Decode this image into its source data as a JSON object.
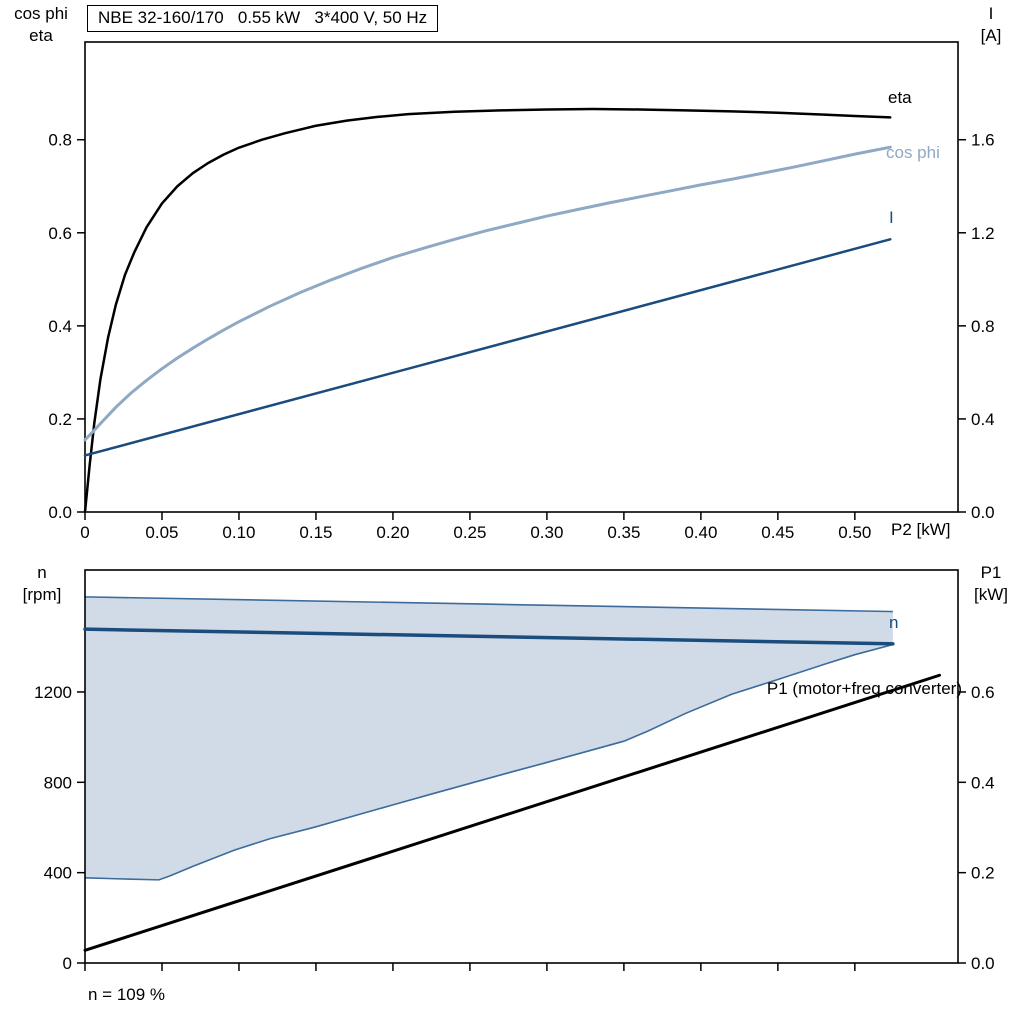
{
  "colors": {
    "black": "#000000",
    "light_blue": "#8fa9c4",
    "dark_blue": "#1a4c7d",
    "envelope_fill": "#cdd9e6",
    "envelope_line": "#3c6b9c"
  },
  "chart_data": [
    {
      "type": "line",
      "title": "NBE 32-160/170   0.55 kW   3*400 V, 50 Hz",
      "x_axis": {
        "label": "P2 [kW]",
        "range": [
          0,
          0.567
        ],
        "ticks": [
          0,
          0.05,
          0.1,
          0.15,
          0.2,
          0.25,
          0.3,
          0.35,
          0.4,
          0.45,
          0.5
        ],
        "tick_labels": [
          "0",
          "0.05",
          "0.10",
          "0.15",
          "0.20",
          "0.25",
          "0.30",
          "0.35",
          "0.40",
          "0.45",
          "0.50"
        ]
      },
      "y_left": {
        "label": "cos phi / eta",
        "label_lines": [
          "cos phi",
          "eta"
        ],
        "range": [
          0,
          1.01
        ],
        "ticks": [
          0,
          0.2,
          0.4,
          0.6,
          0.8
        ],
        "tick_labels": [
          "0.0",
          "0.2",
          "0.4",
          "0.6",
          "0.8"
        ]
      },
      "y_right": {
        "label": "I [A]",
        "label_lines": [
          "I",
          "[A]"
        ],
        "range": [
          0,
          2.02
        ],
        "ticks": [
          0,
          0.4,
          0.8,
          1.2,
          1.6
        ],
        "tick_labels": [
          "0.0",
          "0.4",
          "0.8",
          "1.2",
          "1.6"
        ]
      },
      "grid": false,
      "legend_position": "labels-at-line-ends",
      "series": [
        {
          "name": "eta",
          "color": "black",
          "axis": "left",
          "width": 2.5,
          "points": [
            [
              0,
              0
            ],
            [
              0.003,
              0.1
            ],
            [
              0.006,
              0.19
            ],
            [
              0.01,
              0.285
            ],
            [
              0.015,
              0.375
            ],
            [
              0.02,
              0.445
            ],
            [
              0.026,
              0.51
            ],
            [
              0.032,
              0.558
            ],
            [
              0.04,
              0.612
            ],
            [
              0.05,
              0.663
            ],
            [
              0.06,
              0.7
            ],
            [
              0.07,
              0.728
            ],
            [
              0.08,
              0.75
            ],
            [
              0.09,
              0.768
            ],
            [
              0.1,
              0.783
            ],
            [
              0.115,
              0.8
            ],
            [
              0.13,
              0.814
            ],
            [
              0.15,
              0.83
            ],
            [
              0.17,
              0.841
            ],
            [
              0.19,
              0.849
            ],
            [
              0.21,
              0.855
            ],
            [
              0.24,
              0.86
            ],
            [
              0.27,
              0.863
            ],
            [
              0.3,
              0.865
            ],
            [
              0.33,
              0.866
            ],
            [
              0.36,
              0.865
            ],
            [
              0.39,
              0.863
            ],
            [
              0.42,
              0.861
            ],
            [
              0.45,
              0.858
            ],
            [
              0.48,
              0.854
            ],
            [
              0.5,
              0.851
            ],
            [
              0.523,
              0.848
            ]
          ]
        },
        {
          "name": "cos phi",
          "color": "light_blue",
          "axis": "left",
          "width": 3,
          "points": [
            [
              0,
              0.155
            ],
            [
              0.005,
              0.172
            ],
            [
              0.01,
              0.19
            ],
            [
              0.02,
              0.225
            ],
            [
              0.03,
              0.256
            ],
            [
              0.04,
              0.283
            ],
            [
              0.05,
              0.308
            ],
            [
              0.06,
              0.331
            ],
            [
              0.07,
              0.352
            ],
            [
              0.08,
              0.372
            ],
            [
              0.09,
              0.391
            ],
            [
              0.1,
              0.409
            ],
            [
              0.12,
              0.442
            ],
            [
              0.14,
              0.472
            ],
            [
              0.16,
              0.499
            ],
            [
              0.18,
              0.524
            ],
            [
              0.2,
              0.547
            ],
            [
              0.22,
              0.567
            ],
            [
              0.24,
              0.586
            ],
            [
              0.26,
              0.604
            ],
            [
              0.28,
              0.62
            ],
            [
              0.3,
              0.636
            ],
            [
              0.32,
              0.65
            ],
            [
              0.34,
              0.664
            ],
            [
              0.36,
              0.677
            ],
            [
              0.38,
              0.69
            ],
            [
              0.4,
              0.703
            ],
            [
              0.42,
              0.715
            ],
            [
              0.44,
              0.728
            ],
            [
              0.46,
              0.741
            ],
            [
              0.48,
              0.755
            ],
            [
              0.5,
              0.769
            ],
            [
              0.523,
              0.784
            ]
          ]
        },
        {
          "name": "I",
          "color": "dark_blue",
          "axis": "right",
          "width": 2.5,
          "points": [
            [
              0,
              0.243
            ],
            [
              0.523,
              1.172
            ]
          ]
        }
      ]
    },
    {
      "type": "line+area",
      "title": "",
      "annotation": "n = 109 %",
      "x_axis": {
        "label": "",
        "range": [
          0,
          0.567
        ],
        "ticks": [
          0,
          0.05,
          0.1,
          0.15,
          0.2,
          0.25,
          0.3,
          0.35,
          0.4,
          0.45,
          0.5
        ],
        "tick_labels": []
      },
      "y_left": {
        "label": "n [rpm]",
        "label_lines": [
          "n",
          "[rpm]"
        ],
        "range": [
          0,
          1740
        ],
        "ticks": [
          0,
          400,
          800,
          1200
        ],
        "tick_labels": [
          "0",
          "400",
          "800",
          "1200"
        ]
      },
      "y_right": {
        "label": "P1 [kW]",
        "label_lines": [
          "P1",
          "[kW]"
        ],
        "range": [
          0,
          0.87
        ],
        "ticks": [
          0,
          0.2,
          0.4,
          0.6
        ],
        "tick_labels": [
          "0.0",
          "0.2",
          "0.4",
          "0.6"
        ]
      },
      "grid": false,
      "envelope": {
        "name": "speed-operating-range",
        "upper": [
          [
            0,
            1621
          ],
          [
            0.26,
            1589
          ],
          [
            0.5247,
            1556
          ]
        ],
        "lower": [
          [
            0,
            377
          ],
          [
            0.02,
            373
          ],
          [
            0.048,
            368
          ],
          [
            0.055,
            385
          ],
          [
            0.07,
            428
          ],
          [
            0.097,
            500
          ],
          [
            0.12,
            550
          ],
          [
            0.15,
            603
          ],
          [
            0.175,
            652
          ],
          [
            0.2,
            700
          ],
          [
            0.225,
            748
          ],
          [
            0.25,
            795
          ],
          [
            0.275,
            842
          ],
          [
            0.3,
            888
          ],
          [
            0.325,
            935
          ],
          [
            0.35,
            982
          ],
          [
            0.365,
            1025
          ],
          [
            0.39,
            1105
          ],
          [
            0.42,
            1190
          ],
          [
            0.45,
            1255
          ],
          [
            0.48,
            1322
          ],
          [
            0.5,
            1365
          ],
          [
            0.5247,
            1410
          ]
        ]
      },
      "series": [
        {
          "name": "n",
          "color": "dark_blue",
          "axis": "left",
          "width": 3.5,
          "points": [
            [
              0,
              1478
            ],
            [
              0.5247,
              1413
            ]
          ]
        },
        {
          "name": "P1 (motor+freq.converter)",
          "color": "black",
          "axis": "right",
          "width": 3,
          "points": [
            [
              0,
              0.028
            ],
            [
              0.555,
              0.637
            ]
          ]
        }
      ]
    }
  ]
}
